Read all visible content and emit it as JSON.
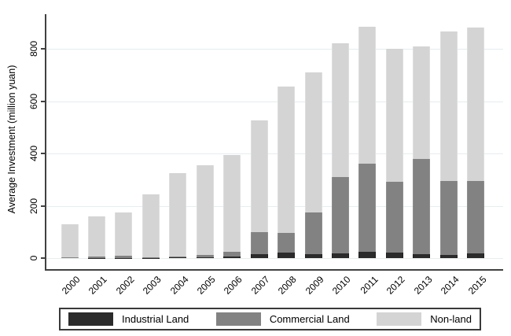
{
  "chart_data": {
    "type": "bar",
    "stacked": true,
    "title": "",
    "xlabel": "",
    "ylabel": "Average Investment (million yuan)",
    "categories": [
      "2000",
      "2001",
      "2002",
      "2003",
      "2004",
      "2005",
      "2006",
      "2007",
      "2008",
      "2009",
      "2010",
      "2011",
      "2012",
      "2013",
      "2014",
      "2015"
    ],
    "series": [
      {
        "name": "Industrial Land",
        "color": "#2b2b2b",
        "edge": "#1f1f1f",
        "values": [
          0,
          1,
          1,
          1,
          2,
          3,
          5,
          15,
          20,
          15,
          17,
          25,
          21,
          15,
          12,
          18
        ]
      },
      {
        "name": "Commercial Land",
        "color": "#828282",
        "edge": "#8f8f8f",
        "values": [
          2,
          6,
          7,
          3,
          5,
          8,
          20,
          85,
          75,
          160,
          293,
          335,
          270,
          365,
          283,
          278
        ]
      },
      {
        "name": "Non-land",
        "color": "#d4d4d4",
        "edge": "#dedede",
        "values": [
          128,
          153,
          167,
          241,
          318,
          344,
          370,
          425,
          560,
          535,
          510,
          525,
          509,
          430,
          570,
          584
        ]
      }
    ],
    "totals": [
      130,
      160,
      175,
      245,
      325,
      355,
      395,
      525,
      655,
      710,
      820,
      885,
      800,
      810,
      865,
      880
    ],
    "yticks": [
      0,
      200,
      400,
      600,
      800
    ],
    "ylim": [
      0,
      900
    ],
    "grid": true,
    "gridline_color": "#e4eef0",
    "axis_color": "#414141",
    "background_color": "#ffffff",
    "legend_position": "bottom"
  },
  "legend": {
    "items": [
      {
        "label": "Industrial Land"
      },
      {
        "label": "Commercial Land"
      },
      {
        "label": "Non-land"
      }
    ]
  }
}
